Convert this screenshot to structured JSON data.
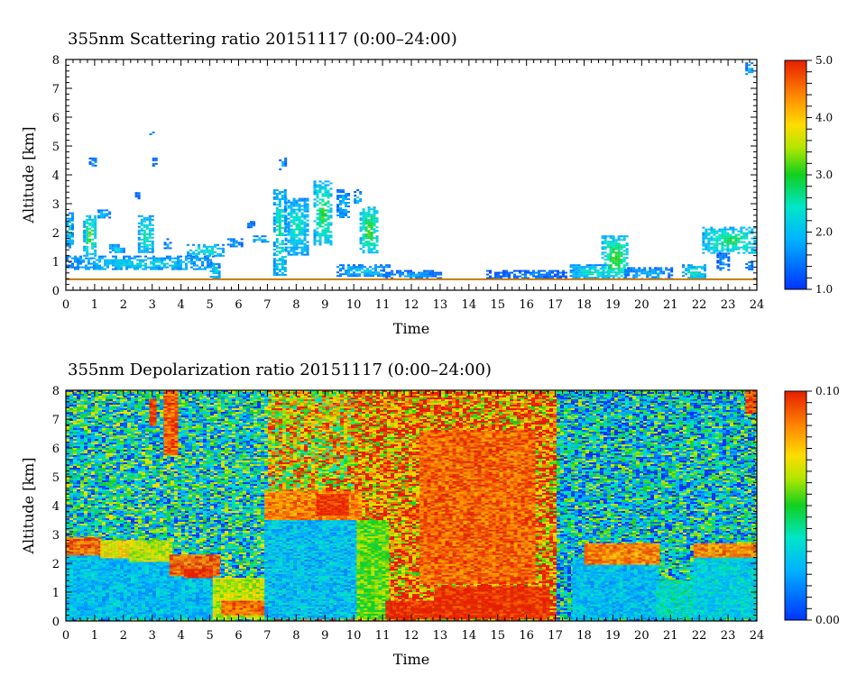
{
  "chart_data": [
    {
      "type": "heatmap",
      "title": "355nm Scattering ratio  20151117 (0:00–24:00)",
      "xlabel": "Time",
      "ylabel": "Altitude [km]",
      "xlim": [
        0,
        24
      ],
      "ylim": [
        0,
        8
      ],
      "x_ticks": [
        "0",
        "1",
        "2",
        "3",
        "4",
        "5",
        "6",
        "7",
        "8",
        "9",
        "10",
        "11",
        "12",
        "13",
        "14",
        "15",
        "16",
        "17",
        "18",
        "19",
        "20",
        "21",
        "22",
        "23",
        "24"
      ],
      "y_ticks": [
        "0",
        "1",
        "2",
        "3",
        "4",
        "5",
        "6",
        "7",
        "8"
      ],
      "colorbar": {
        "min": 1.0,
        "max": 5.0,
        "labels": [
          "1.0",
          "2.0",
          "3.0",
          "4.0",
          "5.0"
        ],
        "label_values": [
          1.0,
          2.0,
          3.0,
          4.0,
          5.0
        ]
      },
      "background": "none",
      "features": [
        {
          "t0": 0.0,
          "t1": 0.2,
          "z0": 1.5,
          "z1": 2.7,
          "v": 2.5
        },
        {
          "t0": 0.6,
          "t1": 1.0,
          "z0": 1.2,
          "z1": 2.6,
          "v": 3.2
        },
        {
          "t0": 0.0,
          "t1": 5.1,
          "z0": 0.7,
          "z1": 1.2,
          "v": 2.3
        },
        {
          "t0": 0.8,
          "t1": 1.0,
          "z0": 4.3,
          "z1": 4.6,
          "v": 2.0
        },
        {
          "t0": 1.1,
          "t1": 1.5,
          "z0": 2.5,
          "z1": 2.8,
          "v": 2.2
        },
        {
          "t0": 1.5,
          "t1": 2.0,
          "z0": 1.3,
          "z1": 1.6,
          "v": 2.4
        },
        {
          "t0": 2.4,
          "t1": 2.5,
          "z0": 3.2,
          "z1": 3.4,
          "v": 1.8
        },
        {
          "t0": 2.5,
          "t1": 3.0,
          "z0": 1.3,
          "z1": 2.6,
          "v": 2.8
        },
        {
          "t0": 2.9,
          "t1": 3.0,
          "z0": 5.4,
          "z1": 5.5,
          "v": 1.8
        },
        {
          "t0": 3.0,
          "t1": 3.1,
          "z0": 4.3,
          "z1": 4.6,
          "v": 1.8
        },
        {
          "t0": 3.4,
          "t1": 3.6,
          "z0": 1.4,
          "z1": 1.8,
          "v": 2.0
        },
        {
          "t0": 4.2,
          "t1": 5.5,
          "z0": 1.2,
          "z1": 1.6,
          "v": 2.6
        },
        {
          "t0": 5.0,
          "t1": 5.3,
          "z0": 0.4,
          "z1": 1.0,
          "v": 2.4
        },
        {
          "t0": 5.6,
          "t1": 6.1,
          "z0": 1.5,
          "z1": 1.8,
          "v": 1.8
        },
        {
          "t0": 6.3,
          "t1": 6.5,
          "z0": 2.2,
          "z1": 2.4,
          "v": 1.8
        },
        {
          "t0": 6.5,
          "t1": 7.0,
          "z0": 1.7,
          "z1": 1.9,
          "v": 2.2
        },
        {
          "t0": 7.2,
          "t1": 7.6,
          "z0": 0.5,
          "z1": 3.5,
          "v": 2.8
        },
        {
          "t0": 7.4,
          "t1": 7.6,
          "z0": 4.2,
          "z1": 4.6,
          "v": 1.8
        },
        {
          "t0": 7.6,
          "t1": 8.4,
          "z0": 1.2,
          "z1": 3.2,
          "v": 2.6
        },
        {
          "t0": 8.6,
          "t1": 9.2,
          "z0": 1.6,
          "z1": 3.8,
          "v": 3.2
        },
        {
          "t0": 9.4,
          "t1": 9.8,
          "z0": 2.5,
          "z1": 3.5,
          "v": 2.2
        },
        {
          "t0": 10.0,
          "t1": 10.2,
          "z0": 3.0,
          "z1": 3.5,
          "v": 2.2
        },
        {
          "t0": 10.2,
          "t1": 10.8,
          "z0": 1.3,
          "z1": 2.9,
          "v": 3.3
        },
        {
          "t0": 9.4,
          "t1": 11.2,
          "z0": 0.5,
          "z1": 0.9,
          "v": 2.2
        },
        {
          "t0": 11.0,
          "t1": 13.0,
          "z0": 0.4,
          "z1": 0.7,
          "v": 1.8
        },
        {
          "t0": 14.6,
          "t1": 17.4,
          "z0": 0.4,
          "z1": 0.7,
          "v": 1.6
        },
        {
          "t0": 17.5,
          "t1": 18.9,
          "z0": 0.4,
          "z1": 0.9,
          "v": 2.6
        },
        {
          "t0": 18.6,
          "t1": 19.5,
          "z0": 0.4,
          "z1": 1.9,
          "v": 3.3
        },
        {
          "t0": 19.4,
          "t1": 21.0,
          "z0": 0.4,
          "z1": 0.8,
          "v": 2.0
        },
        {
          "t0": 21.4,
          "t1": 22.2,
          "z0": 0.4,
          "z1": 0.9,
          "v": 2.6
        },
        {
          "t0": 22.1,
          "t1": 24.0,
          "z0": 1.3,
          "z1": 2.2,
          "v": 3.0
        },
        {
          "t0": 22.6,
          "t1": 23.0,
          "z0": 0.7,
          "z1": 1.3,
          "v": 1.8
        },
        {
          "t0": 23.6,
          "t1": 23.8,
          "z0": 0.7,
          "z1": 1.0,
          "v": 1.8
        },
        {
          "t0": 23.6,
          "t1": 23.8,
          "z0": 7.5,
          "z1": 7.9,
          "v": 2.2
        }
      ],
      "surface_line_km": 0.38
    },
    {
      "type": "heatmap",
      "title": "355nm Depolarization ratio  20151117 (0:00–24:00)",
      "xlabel": "Time",
      "ylabel": "Altitude [km]",
      "xlim": [
        0,
        24
      ],
      "ylim": [
        0,
        8
      ],
      "x_ticks": [
        "0",
        "1",
        "2",
        "3",
        "4",
        "5",
        "6",
        "7",
        "8",
        "9",
        "10",
        "11",
        "12",
        "13",
        "14",
        "15",
        "16",
        "17",
        "18",
        "19",
        "20",
        "21",
        "22",
        "23",
        "24"
      ],
      "y_ticks": [
        "0",
        "1",
        "2",
        "3",
        "4",
        "5",
        "6",
        "7",
        "8"
      ],
      "colorbar": {
        "min": 0.0,
        "max": 0.1,
        "labels": [
          "0.00",
          "0.10"
        ],
        "label_values": [
          0.0,
          0.1
        ]
      },
      "background": "noise",
      "noise_profile": [
        {
          "t0": 0.0,
          "t1": 7.0,
          "v": 0.035
        },
        {
          "t0": 7.0,
          "t1": 10.0,
          "v": 0.07
        },
        {
          "t0": 10.0,
          "t1": 17.0,
          "v": 0.085
        },
        {
          "t0": 17.0,
          "t1": 24.0,
          "v": 0.03
        }
      ],
      "features": [
        {
          "t0": 0.0,
          "t1": 5.2,
          "z0": 0.1,
          "z1": 2.3,
          "v": 0.025
        },
        {
          "t0": 0.0,
          "t1": 1.2,
          "z0": 2.3,
          "z1": 2.9,
          "v": 0.09
        },
        {
          "t0": 1.2,
          "t1": 2.2,
          "z0": 2.2,
          "z1": 2.8,
          "v": 0.07
        },
        {
          "t0": 2.2,
          "t1": 3.6,
          "z0": 2.1,
          "z1": 2.8,
          "v": 0.065
        },
        {
          "t0": 3.6,
          "t1": 5.3,
          "z0": 1.6,
          "z1": 2.3,
          "v": 0.09
        },
        {
          "t0": 4.1,
          "t1": 5.0,
          "z0": 1.5,
          "z1": 1.8,
          "v": 0.1
        },
        {
          "t0": 2.9,
          "t1": 3.1,
          "z0": 6.8,
          "z1": 7.7,
          "v": 0.095
        },
        {
          "t0": 3.4,
          "t1": 3.8,
          "z0": 5.8,
          "z1": 8.0,
          "v": 0.09
        },
        {
          "t0": 5.1,
          "t1": 7.5,
          "z0": 0.1,
          "z1": 1.5,
          "v": 0.065
        },
        {
          "t0": 5.4,
          "t1": 7.1,
          "z0": 0.2,
          "z1": 0.7,
          "v": 0.09
        },
        {
          "t0": 6.9,
          "t1": 10.1,
          "z0": 0.1,
          "z1": 3.5,
          "v": 0.025
        },
        {
          "t0": 6.9,
          "t1": 10.2,
          "z0": 3.5,
          "z1": 4.5,
          "v": 0.085
        },
        {
          "t0": 8.7,
          "t1": 9.8,
          "z0": 3.7,
          "z1": 4.4,
          "v": 0.1
        },
        {
          "t0": 10.1,
          "t1": 11.2,
          "z0": 0.1,
          "z1": 3.5,
          "v": 0.055
        },
        {
          "t0": 11.1,
          "t1": 12.8,
          "z0": 0.1,
          "z1": 0.7,
          "v": 0.1
        },
        {
          "t0": 12.8,
          "t1": 16.8,
          "z0": 0.1,
          "z1": 1.2,
          "v": 0.1
        },
        {
          "t0": 12.3,
          "t1": 16.2,
          "z0": 1.3,
          "z1": 6.6,
          "v": 0.09
        },
        {
          "t0": 17.6,
          "t1": 20.6,
          "z0": 0.1,
          "z1": 2.2,
          "v": 0.025
        },
        {
          "t0": 18.0,
          "t1": 20.6,
          "z0": 2.0,
          "z1": 2.7,
          "v": 0.085
        },
        {
          "t0": 20.5,
          "t1": 21.8,
          "z0": 0.1,
          "z1": 1.4,
          "v": 0.035
        },
        {
          "t0": 21.8,
          "t1": 24.0,
          "z0": 0.1,
          "z1": 2.2,
          "v": 0.03
        },
        {
          "t0": 21.8,
          "t1": 24.0,
          "z0": 2.2,
          "z1": 2.7,
          "v": 0.085
        },
        {
          "t0": 23.6,
          "t1": 23.9,
          "z0": 7.2,
          "z1": 8.0,
          "v": 0.095
        }
      ]
    }
  ]
}
